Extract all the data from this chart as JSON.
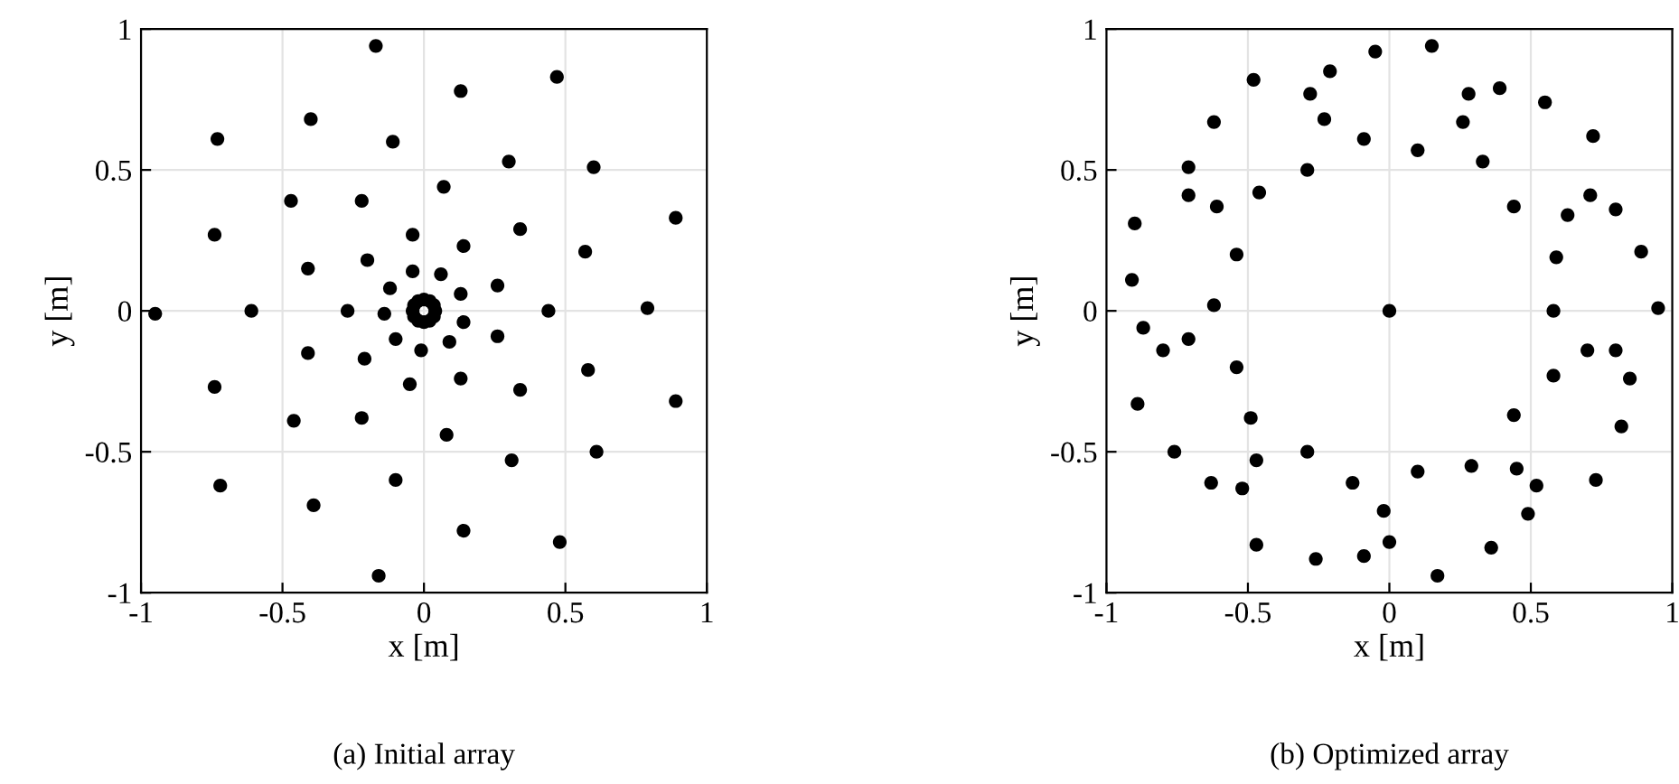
{
  "chart_data": [
    {
      "type": "scatter",
      "title": "(a) Initial array",
      "xlabel": "x [m]",
      "ylabel": "y [m]",
      "xlim": [
        -1,
        1
      ],
      "ylim": [
        -1,
        1
      ],
      "xticks": [
        -1,
        -0.5,
        0,
        0.5,
        1
      ],
      "yticks": [
        -1,
        -0.5,
        0,
        0.5,
        1
      ],
      "grid": true,
      "marker": "circle",
      "legend": false,
      "series": [
        {
          "color": "#000000",
          "x": [
            -0.17,
            0.13,
            0.47,
            -0.4,
            -0.11,
            -0.73,
            0.3,
            0.6,
            0.07,
            -0.47,
            -0.22,
            0.89,
            -0.74,
            -0.04,
            0.14,
            0.34,
            0.57,
            -0.41,
            -0.2,
            -0.04,
            0.06,
            -0.12,
            0.13,
            0.26,
            -0.95,
            -0.61,
            -0.27,
            -0.14,
            0.44,
            0.79,
            0.14,
            -0.1,
            -0.01,
            0.09,
            0.26,
            -0.41,
            -0.21,
            -0.05,
            0.13,
            0.34,
            0.58,
            -0.74,
            -0.46,
            -0.22,
            0.08,
            0.89,
            0.31,
            0.61,
            -0.72,
            -0.1,
            -0.39,
            0.14,
            0.48,
            -0.16,
            0.04,
            0.035,
            0.02,
            0,
            -0.02,
            -0.035,
            -0.04,
            -0.035,
            -0.02,
            0,
            0.02,
            0.035
          ],
          "values": [
            0.94,
            0.78,
            0.83,
            0.68,
            0.6,
            0.61,
            0.53,
            0.51,
            0.44,
            0.39,
            0.39,
            0.33,
            0.27,
            0.27,
            0.23,
            0.29,
            0.21,
            0.15,
            0.18,
            0.14,
            0.13,
            0.08,
            0.06,
            0.09,
            -0.01,
            0,
            0,
            -0.01,
            0,
            0.01,
            -0.04,
            -0.1,
            -0.14,
            -0.11,
            -0.09,
            -0.15,
            -0.17,
            -0.26,
            -0.24,
            -0.28,
            -0.21,
            -0.27,
            -0.39,
            -0.38,
            -0.44,
            -0.32,
            -0.53,
            -0.5,
            -0.62,
            -0.6,
            -0.69,
            -0.78,
            -0.82,
            -0.94,
            0,
            0.02,
            0.035,
            0.04,
            0.035,
            0.02,
            0,
            -0.02,
            -0.035,
            -0.04,
            -0.035,
            -0.02
          ]
        }
      ]
    },
    {
      "type": "scatter",
      "title": "(b) Optimized array",
      "xlabel": "x [m]",
      "ylabel": "y [m]",
      "xlim": [
        -1,
        1
      ],
      "ylim": [
        -1,
        1
      ],
      "xticks": [
        -1,
        -0.5,
        0,
        0.5,
        1
      ],
      "yticks": [
        -1,
        -0.5,
        0,
        0.5,
        1
      ],
      "grid": true,
      "marker": "circle",
      "legend": false,
      "series": [
        {
          "color": "#000000",
          "x": [
            -0.05,
            0.15,
            -0.21,
            -0.48,
            -0.28,
            0.28,
            0.39,
            0.55,
            -0.62,
            -0.23,
            0.26,
            -0.09,
            0.1,
            0.72,
            -0.71,
            -0.29,
            0.33,
            -0.71,
            -0.61,
            -0.46,
            0.44,
            0.71,
            0.8,
            0.63,
            -0.9,
            -0.54,
            0.59,
            0.89,
            -0.91,
            -0.62,
            0,
            0.58,
            0.95,
            -0.87,
            -0.8,
            -0.71,
            -0.54,
            0.7,
            0.8,
            0.85,
            0.58,
            -0.89,
            0.44,
            0.82,
            -0.49,
            -0.76,
            -0.47,
            -0.29,
            -0.63,
            -0.52,
            -0.13,
            0.1,
            0.29,
            0.45,
            0.52,
            0.73,
            -0.02,
            0.49,
            -0.47,
            -0.26,
            -0.09,
            0,
            0.36,
            0.17
          ],
          "values": [
            0.92,
            0.94,
            0.85,
            0.82,
            0.77,
            0.77,
            0.79,
            0.74,
            0.67,
            0.68,
            0.67,
            0.61,
            0.57,
            0.62,
            0.51,
            0.5,
            0.53,
            0.41,
            0.37,
            0.42,
            0.37,
            0.41,
            0.36,
            0.34,
            0.31,
            0.2,
            0.19,
            0.21,
            0.11,
            0.02,
            0,
            0,
            0.01,
            -0.06,
            -0.14,
            -0.1,
            -0.2,
            -0.14,
            -0.14,
            -0.24,
            -0.23,
            -0.33,
            -0.37,
            -0.41,
            -0.38,
            -0.5,
            -0.53,
            -0.5,
            -0.61,
            -0.63,
            -0.61,
            -0.57,
            -0.55,
            -0.56,
            -0.62,
            -0.6,
            -0.71,
            -0.72,
            -0.83,
            -0.88,
            -0.87,
            -0.82,
            -0.84,
            -0.94
          ]
        }
      ]
    }
  ]
}
